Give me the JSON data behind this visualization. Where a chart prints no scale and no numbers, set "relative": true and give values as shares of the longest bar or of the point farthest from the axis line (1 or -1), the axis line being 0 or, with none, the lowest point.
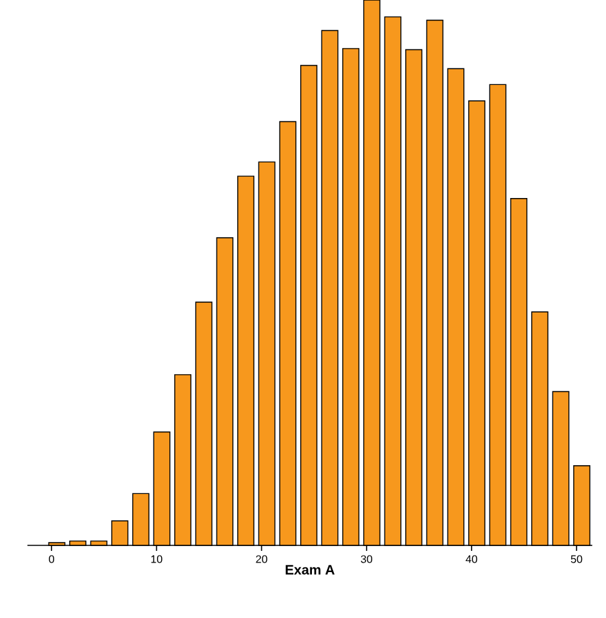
{
  "chart_data": {
    "type": "bar",
    "xlabel": "**Exam A**",
    "relative": true,
    "color": "#f7981d",
    "x": [
      0.5,
      2.5,
      4.5,
      6.5,
      8.5,
      10.5,
      12.5,
      14.5,
      16.5,
      18.5,
      20.5,
      22.5,
      24.5,
      26.5,
      28.5,
      30.5,
      32.5,
      34.5,
      36.5,
      38.5,
      40.5,
      42.5,
      44.5,
      46.5,
      48.5,
      50.5
    ],
    "values": [
      0.005,
      0.008,
      0.008,
      0.045,
      0.095,
      0.208,
      0.313,
      0.446,
      0.564,
      0.677,
      0.703,
      0.777,
      0.88,
      0.944,
      0.911,
      1.0,
      0.969,
      0.909,
      0.963,
      0.874,
      0.815,
      0.845,
      0.636,
      0.428,
      0.282,
      0.146
    ],
    "xlim": [
      -2.3,
      51.5
    ],
    "xticks": [
      0,
      10,
      20,
      30,
      40,
      50
    ]
  }
}
